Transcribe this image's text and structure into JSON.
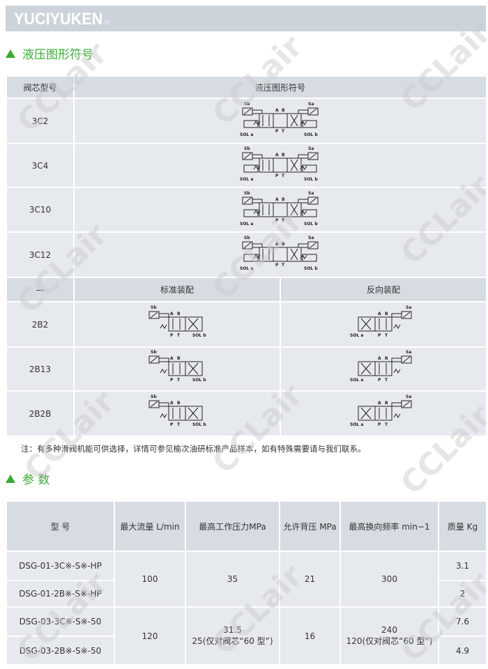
{
  "header": {
    "brand": "YUCIYUKEN",
    "registered": "®"
  },
  "section1": {
    "title": "液压图形符号"
  },
  "symbol_table": {
    "headers": [
      "阀芯型号",
      "液压图形符号"
    ],
    "rows3c": [
      {
        "model": "3C2"
      },
      {
        "model": "3C4"
      },
      {
        "model": "3C10"
      },
      {
        "model": "3C12"
      }
    ],
    "subheader": [
      "—",
      "标准装配",
      "反向装配"
    ],
    "rows2b": [
      {
        "model": "2B2"
      },
      {
        "model": "2B13"
      },
      {
        "model": "2B2B"
      }
    ]
  },
  "symbol_labels": {
    "sa": "Sa",
    "sb": "Sb",
    "a": "A",
    "b": "B",
    "p": "P",
    "t": "T",
    "sola": "SOL a",
    "solb": "SOL b"
  },
  "note": "注：有多种滑阀机能可供选择，详情可参见榆次油研标准产品样本，如有特殊需要请与我们联系。",
  "section2": {
    "title": "参 数"
  },
  "param_table": {
    "headers": [
      "型 号",
      "最大流量 L/min",
      "最高工作压力MPa",
      "允许背压 MPa",
      "最高换向频率 min−1",
      "质量 Kg"
    ],
    "models": [
      "DSG-01-3C※-S※-HP",
      "DSG-01-2B※-S※-HP",
      "DSG-03-3C※-S※-50",
      "DSG-03-2B※-S※-50"
    ],
    "group1": {
      "flow": "100",
      "pressure": "35",
      "back": "21",
      "freq": "300"
    },
    "group2": {
      "flow": "120",
      "pressure": "31.5",
      "pressure_note": "25(仅对阀芯“60 型”)",
      "back": "16",
      "freq": "240",
      "freq_note": "120(仅对阀芯“60 型”)"
    },
    "mass": [
      "3.1",
      "2",
      "7.6",
      "4.9"
    ]
  },
  "watermark": "CCLair",
  "colors": {
    "accent": "#3aa935",
    "table_bg": "#e6e9ee",
    "header_bg": "#d7dce3",
    "brand_bar": "#cdd3db"
  }
}
